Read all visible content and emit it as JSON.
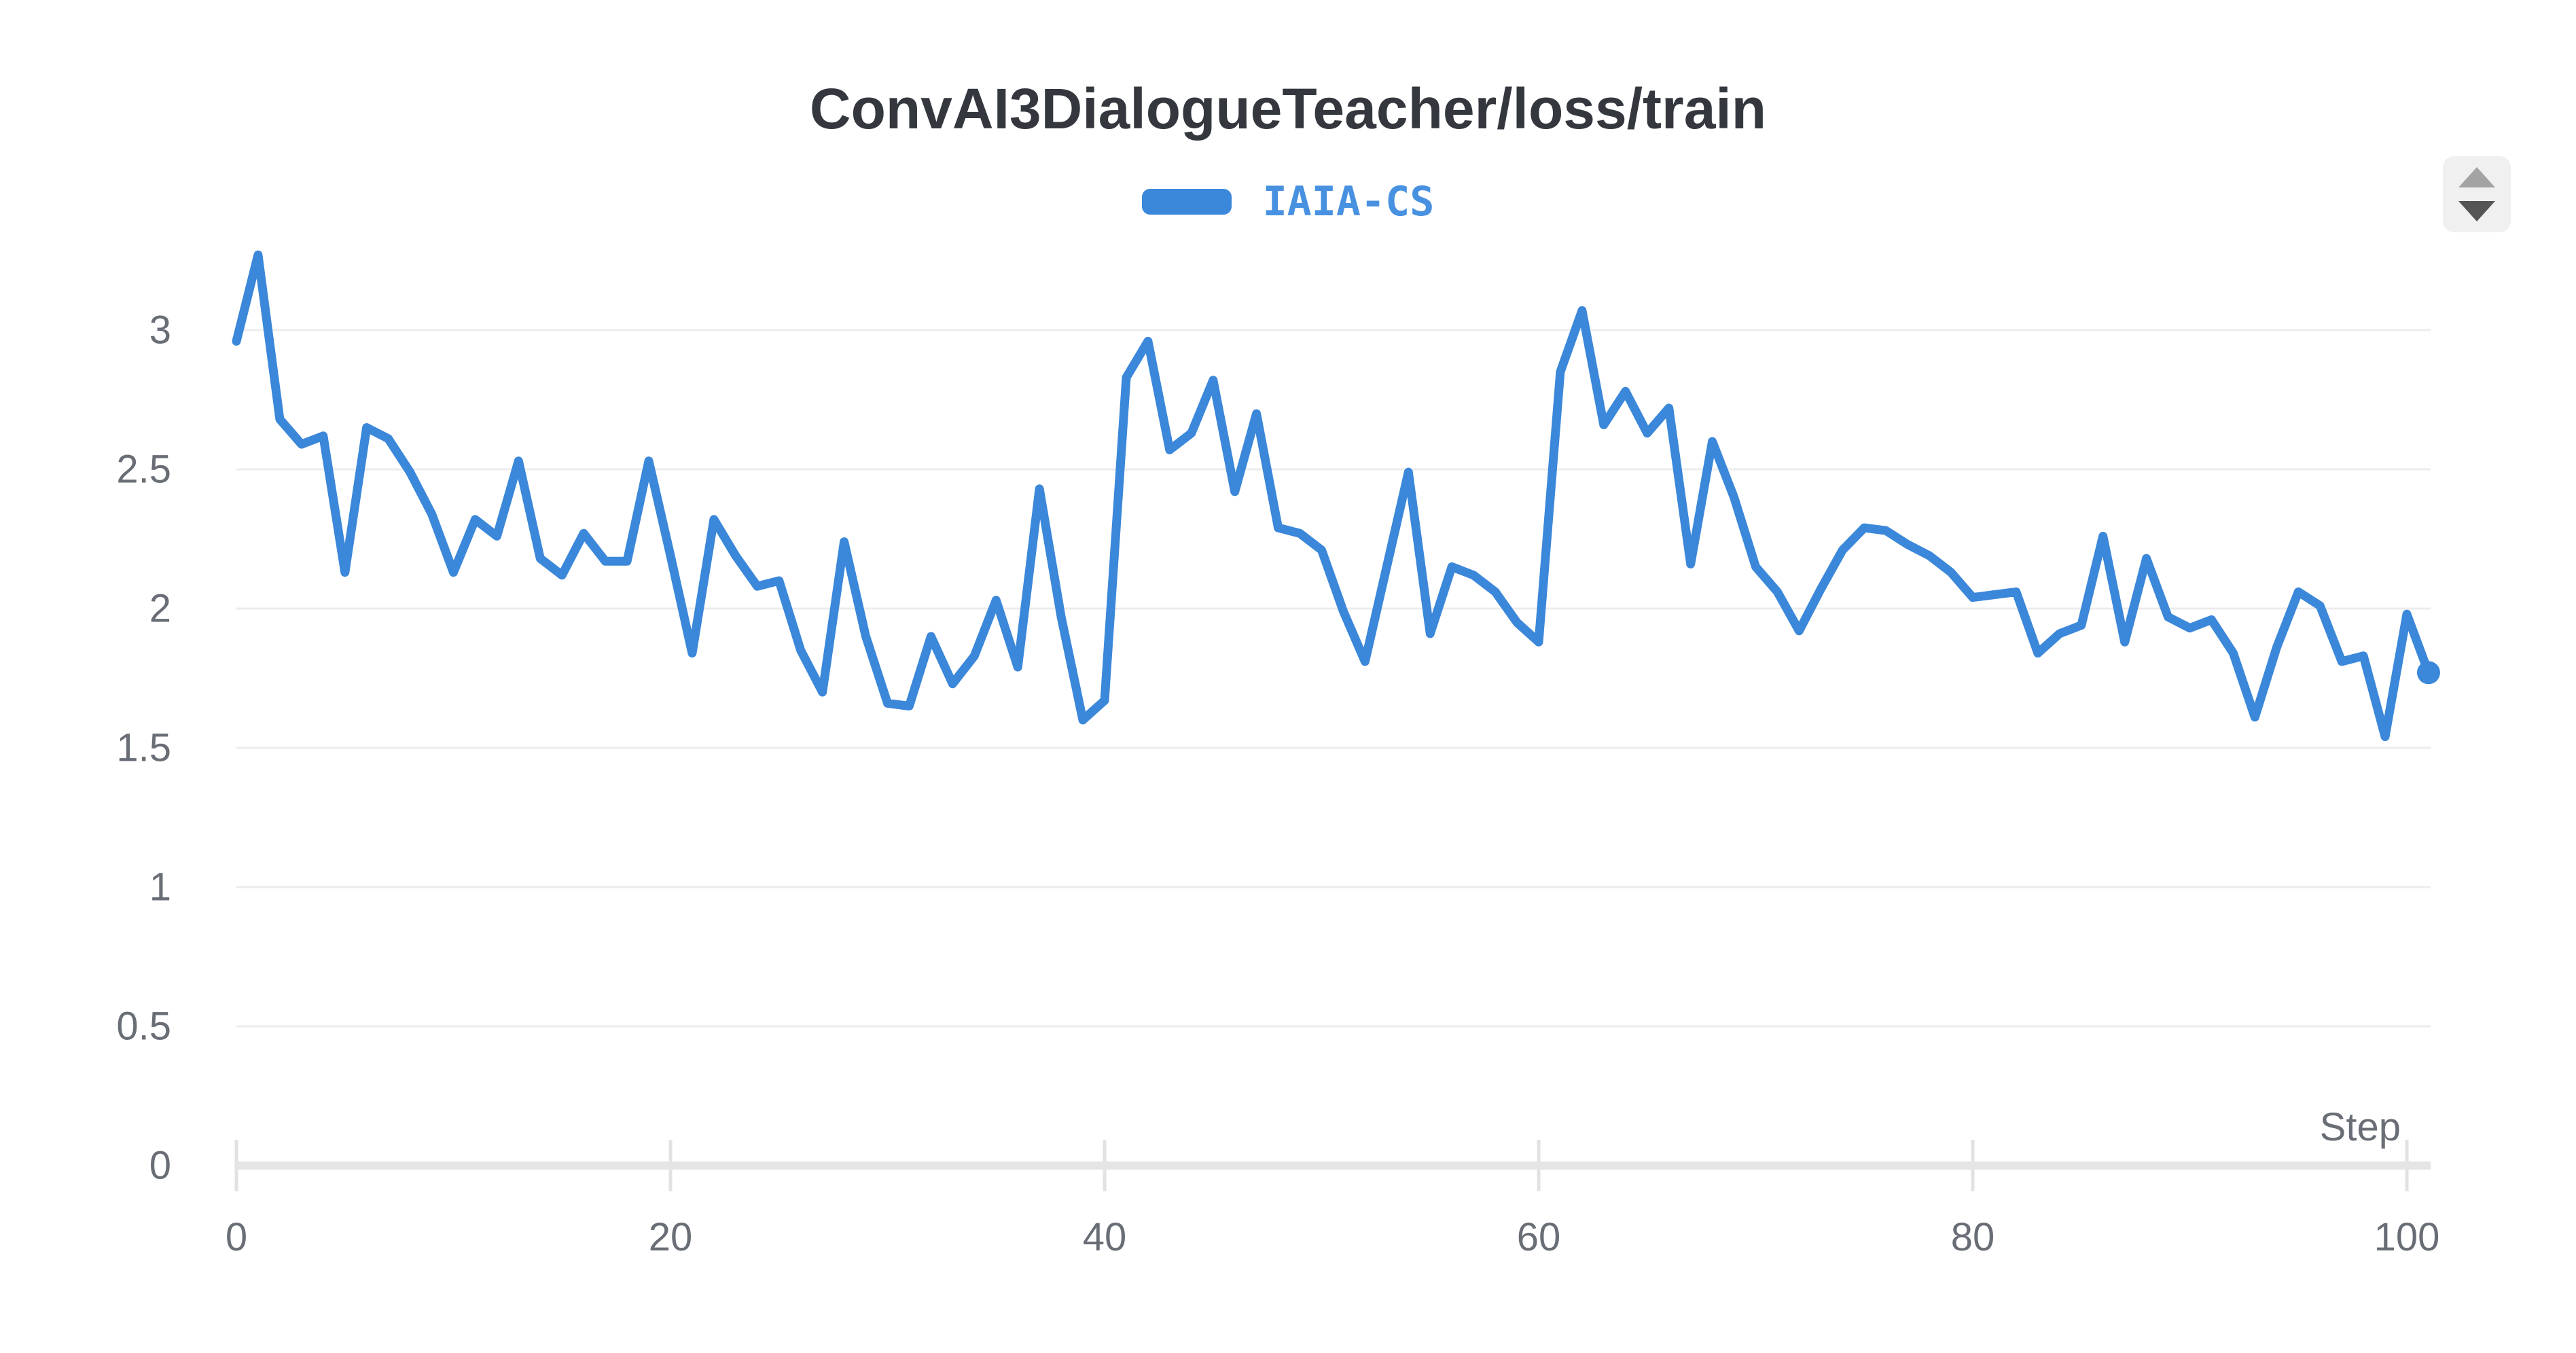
{
  "page": {
    "background": "#ffffff"
  },
  "header": {
    "title": "ConvAI3DialogueTeacher/loss/train"
  },
  "legend": {
    "items": [
      {
        "label": "IAIA-CS",
        "color": "#3b87d9"
      }
    ]
  },
  "stepper": {
    "up_icon": "triangle-up",
    "down_icon": "triangle-down"
  },
  "axes": {
    "x": {
      "label": "Step",
      "ticks": [
        "0",
        "20",
        "40",
        "60",
        "80",
        "100"
      ],
      "range": [
        0,
        101
      ]
    },
    "y": {
      "ticks": [
        "0",
        "0.5",
        "1",
        "1.5",
        "2",
        "2.5",
        "3"
      ],
      "range": [
        0,
        3.3
      ]
    }
  },
  "colors": {
    "line": "#3b87d9",
    "legend_text": "#4791e0",
    "title_text": "#34383e",
    "tick_text": "#696d75",
    "gridline": "#ececec",
    "axis_bar": "#e5e5e5",
    "tick_mark": "#e2e2e2"
  },
  "chart_data": {
    "type": "line",
    "title": "ConvAI3DialogueTeacher/loss/train",
    "xlabel": "Step",
    "ylabel": "",
    "xlim": [
      0,
      101
    ],
    "ylim": [
      0,
      3.3
    ],
    "grid": true,
    "legend_position": "top-center",
    "end_marker": "dot",
    "series": [
      {
        "name": "IAIA-CS",
        "color": "#3b87d9",
        "x_start": 0,
        "x_step": 1,
        "values": [
          2.96,
          3.27,
          2.68,
          2.59,
          2.62,
          2.13,
          2.65,
          2.61,
          2.49,
          2.34,
          2.13,
          2.32,
          2.26,
          2.53,
          2.18,
          2.12,
          2.27,
          2.17,
          2.17,
          2.53,
          2.19,
          1.84,
          2.32,
          2.19,
          2.08,
          2.1,
          1.85,
          1.7,
          2.24,
          1.9,
          1.66,
          1.65,
          1.9,
          1.73,
          1.83,
          2.03,
          1.79,
          2.43,
          1.97,
          1.6,
          1.67,
          2.83,
          2.96,
          2.57,
          2.63,
          2.82,
          2.42,
          2.7,
          2.29,
          2.27,
          2.21,
          1.99,
          1.81,
          2.15,
          2.49,
          1.91,
          2.15,
          2.12,
          2.06,
          1.95,
          1.88,
          2.85,
          3.07,
          2.66,
          2.78,
          2.63,
          2.72,
          2.16,
          2.6,
          2.4,
          2.15,
          2.06,
          1.92,
          2.07,
          2.21,
          2.29,
          2.28,
          2.23,
          2.19,
          2.13,
          2.04,
          2.05,
          2.06,
          1.84,
          1.91,
          1.94,
          2.26,
          1.88,
          2.18,
          1.97,
          1.93,
          1.96,
          1.84,
          1.61,
          1.86,
          2.06,
          2.01,
          1.81,
          1.83,
          1.54,
          1.98,
          1.77
        ]
      }
    ]
  }
}
